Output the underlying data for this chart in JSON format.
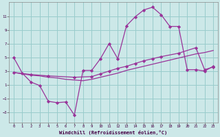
{
  "background_color": "#cce8e8",
  "grid_color": "#99cccc",
  "line_color": "#993399",
  "marker_color": "#993399",
  "xlabel": "Windchill (Refroidissement éolien,°C)",
  "xlim": [
    -0.5,
    23.5
  ],
  "ylim": [
    -4.5,
    13.0
  ],
  "yticks": [
    -3,
    -1,
    1,
    3,
    5,
    7,
    9,
    11
  ],
  "xticks": [
    0,
    1,
    2,
    3,
    4,
    5,
    6,
    7,
    8,
    9,
    10,
    11,
    12,
    13,
    14,
    15,
    16,
    17,
    18,
    19,
    20,
    21,
    22,
    23
  ],
  "curve1_x": [
    0,
    1,
    2,
    3,
    4,
    5,
    6,
    7,
    8,
    9,
    10,
    11,
    12,
    13,
    14,
    15,
    16,
    17,
    18,
    19,
    20,
    21,
    22,
    23
  ],
  "curve1_y": [
    5.0,
    2.7,
    1.4,
    0.9,
    -1.4,
    -1.6,
    -1.5,
    -3.4,
    3.1,
    3.1,
    4.8,
    7.0,
    4.8,
    9.6,
    10.9,
    11.9,
    12.3,
    11.2,
    9.5,
    9.5,
    3.2,
    3.2,
    3.0,
    3.7
  ],
  "curve2_x": [
    0,
    2,
    4,
    7,
    9,
    10,
    11,
    12,
    13,
    14,
    15,
    16,
    17,
    19,
    21,
    22,
    23
  ],
  "curve2_y": [
    2.8,
    2.5,
    2.3,
    2.1,
    2.2,
    2.6,
    3.0,
    3.4,
    3.7,
    4.1,
    4.5,
    4.8,
    5.1,
    5.6,
    6.4,
    3.2,
    3.6
  ],
  "curve3_x": [
    0,
    1,
    2,
    3,
    4,
    5,
    6,
    7,
    8,
    9,
    10,
    11,
    12,
    13,
    14,
    15,
    16,
    17,
    18,
    19,
    20,
    21,
    22,
    23
  ],
  "curve3_y": [
    2.8,
    2.6,
    2.4,
    2.3,
    2.1,
    2.0,
    1.8,
    1.7,
    1.6,
    1.8,
    2.1,
    2.4,
    2.7,
    3.1,
    3.4,
    3.7,
    4.0,
    4.3,
    4.6,
    4.9,
    5.2,
    5.5,
    5.7,
    6.0
  ]
}
